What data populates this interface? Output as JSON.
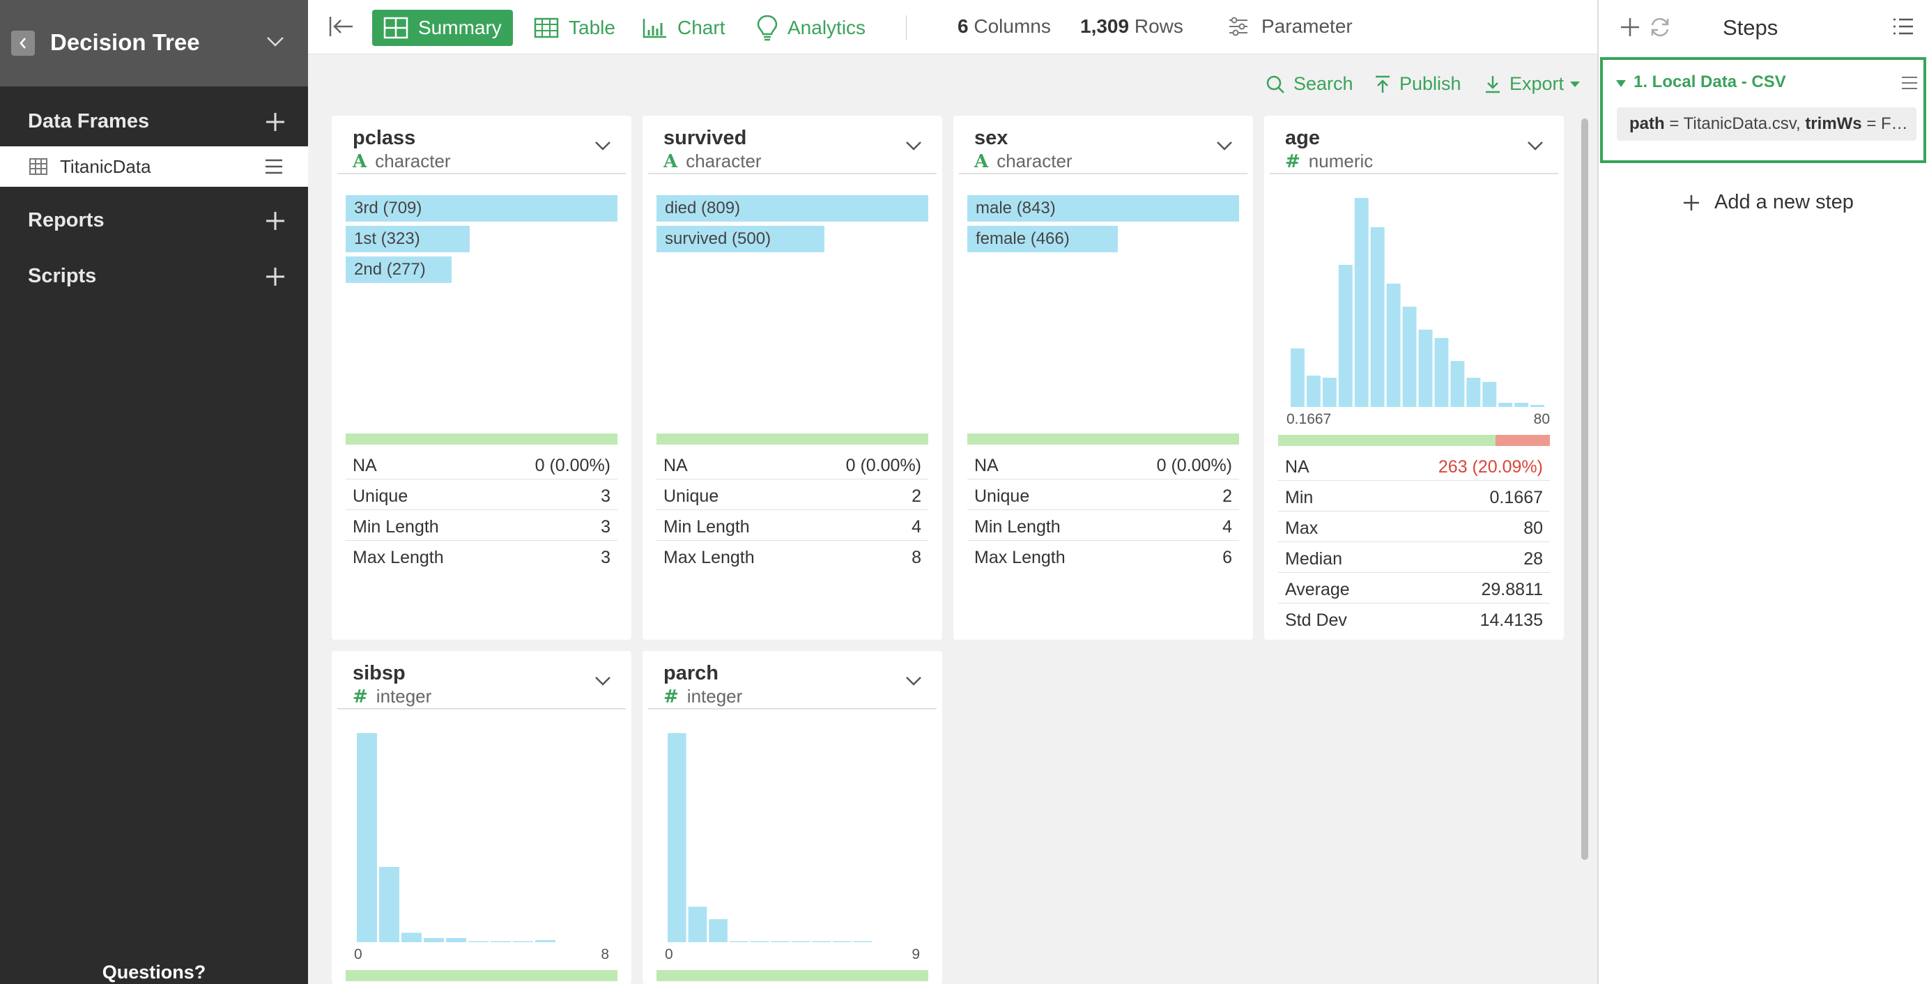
{
  "sidebar": {
    "project_title": "Decision Tree",
    "sections": {
      "data_frames": "Data Frames",
      "reports": "Reports",
      "scripts": "Scripts"
    },
    "items": [
      {
        "label": "TitanicData"
      }
    ],
    "footer": "Questions?"
  },
  "topbar": {
    "tabs": [
      "Summary",
      "Table",
      "Chart",
      "Analytics"
    ],
    "active_tab": "Summary",
    "columns_count": "6",
    "columns_label": "Columns",
    "rows_count": "1,309",
    "rows_label": "Rows",
    "parameter_label": "Parameter"
  },
  "actions": {
    "search": "Search",
    "publish": "Publish",
    "export": "Export"
  },
  "columns": {
    "pclass": {
      "name": "pclass",
      "type": "character",
      "type_glyph": "A",
      "bars": [
        {
          "label": "3rd (709)",
          "count": 709
        },
        {
          "label": "1st (323)",
          "count": 323
        },
        {
          "label": "2nd (277)",
          "count": 277
        }
      ],
      "na_fraction": 0,
      "stats": [
        {
          "k": "NA",
          "v": "0 (0.00%)"
        },
        {
          "k": "Unique",
          "v": "3"
        },
        {
          "k": "Min Length",
          "v": "3"
        },
        {
          "k": "Max Length",
          "v": "3"
        }
      ]
    },
    "survived": {
      "name": "survived",
      "type": "character",
      "type_glyph": "A",
      "bars": [
        {
          "label": "died (809)",
          "count": 809
        },
        {
          "label": "survived (500)",
          "count": 500
        }
      ],
      "na_fraction": 0,
      "stats": [
        {
          "k": "NA",
          "v": "0 (0.00%)"
        },
        {
          "k": "Unique",
          "v": "2"
        },
        {
          "k": "Min Length",
          "v": "4"
        },
        {
          "k": "Max Length",
          "v": "8"
        }
      ]
    },
    "sex": {
      "name": "sex",
      "type": "character",
      "type_glyph": "A",
      "bars": [
        {
          "label": "male (843)",
          "count": 843
        },
        {
          "label": "female (466)",
          "count": 466
        }
      ],
      "na_fraction": 0,
      "stats": [
        {
          "k": "NA",
          "v": "0 (0.00%)"
        },
        {
          "k": "Unique",
          "v": "2"
        },
        {
          "k": "Min Length",
          "v": "4"
        },
        {
          "k": "Max Length",
          "v": "6"
        }
      ]
    },
    "age": {
      "name": "age",
      "type": "numeric",
      "type_glyph": "#",
      "hist": [
        0.28,
        0.15,
        0.14,
        0.68,
        1.0,
        0.86,
        0.59,
        0.48,
        0.37,
        0.33,
        0.22,
        0.14,
        0.12,
        0.02,
        0.02,
        0.01
      ],
      "axis_min": "0.1667",
      "axis_max": "80",
      "na_fraction": 0.2009,
      "stats": [
        {
          "k": "NA",
          "v": "263 (20.09%)",
          "red": true
        },
        {
          "k": "Min",
          "v": "0.1667"
        },
        {
          "k": "Max",
          "v": "80"
        },
        {
          "k": "Median",
          "v": "28"
        },
        {
          "k": "Average",
          "v": "29.8811"
        },
        {
          "k": "Std Dev",
          "v": "14.4135"
        }
      ]
    },
    "sibsp": {
      "name": "sibsp",
      "type": "integer",
      "type_glyph": "#",
      "hist": [
        1.0,
        0.36,
        0.045,
        0.02,
        0.02,
        0.005,
        0.005,
        0.005,
        0.01
      ],
      "axis_min": "0",
      "axis_max": "8",
      "na_fraction": 0
    },
    "parch": {
      "name": "parch",
      "type": "integer",
      "type_glyph": "#",
      "hist": [
        1.0,
        0.17,
        0.11,
        0.005,
        0.005,
        0.005,
        0.003,
        0.002,
        0.002,
        0.002
      ],
      "axis_min": "0",
      "axis_max": "9",
      "na_fraction": 0
    }
  },
  "steps": {
    "title": "Steps",
    "items": [
      {
        "name": "1. Local Data - CSV",
        "params_key1": "path",
        "params_val1": " = TitanicData.csv, ",
        "params_key2": "trimWs",
        "params_val2": " = F…"
      }
    ],
    "add_label": "Add a new step"
  },
  "colors": {
    "accent": "#3aa35a",
    "bar": "#abe2f3",
    "na_ok": "#bfe9b3",
    "na_missing": "#ef9a8e",
    "sidebar_bg": "#2c2c2c"
  }
}
